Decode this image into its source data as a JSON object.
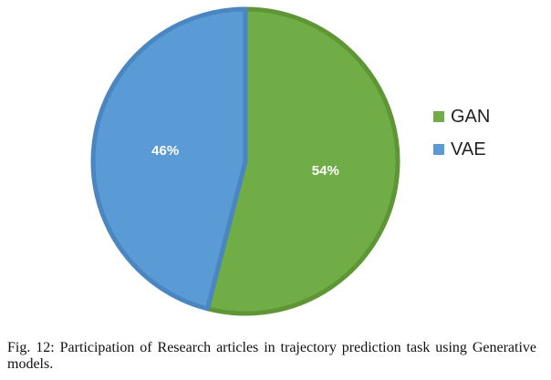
{
  "chart_data": {
    "type": "pie",
    "slices": [
      {
        "name": "GAN",
        "value": 54,
        "label": "54%",
        "color": "#70AD47",
        "border": "#5E9636"
      },
      {
        "name": "VAE",
        "value": 46,
        "label": "46%",
        "color": "#5B9BD5",
        "border": "#4A86C1"
      }
    ],
    "legend_position": "right"
  },
  "legend": {
    "items": [
      {
        "label": "GAN",
        "color": "#70AD47"
      },
      {
        "label": "VAE",
        "color": "#5B9BD5"
      }
    ]
  },
  "caption": "Fig. 12: Participation of Research articles in trajectory prediction task using Generative models."
}
